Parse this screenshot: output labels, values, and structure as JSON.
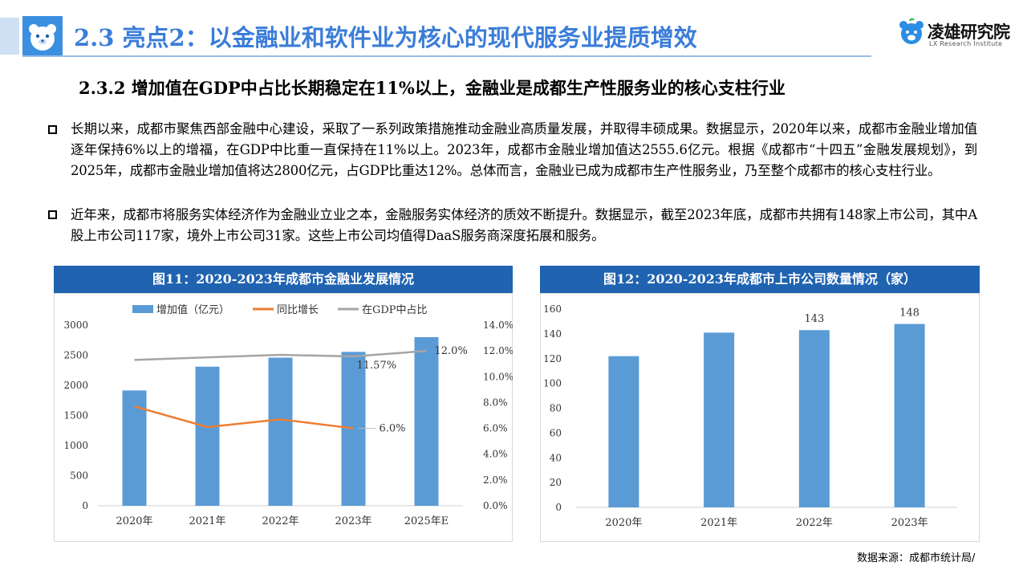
{
  "header": {
    "title": "2.3 亮点2：以金融业和软件业为核心的现代服务业提质增效",
    "brand_name": "凌雄研究院",
    "brand_en": "LX Research Institute"
  },
  "subtitle": "2.3.2 增加值在GDP中占比长期稳定在11%以上，金融业是成都生产性服务业的核心支柱行业",
  "paragraphs": [
    "长期以来，成都市聚焦西部金融中心建设，采取了一系列政策措施推动金融业高质量发展，并取得丰硕成果。数据显示，2020年以来，成都市金融业增加值逐年保持6%以上的增福，在GDP中比重一直保持在11%以上。2023年，成都市金融业增加值达2555.6亿元。根据《成都市“十四五”金融发展规划》，到2025年，成都市金融业增加值将达2800亿元，占GDP比重达12%。总体而言，金融业已成为成都市生产性服务业，乃至整个成都市的核心支柱行业。",
    "近年来，成都市将服务实体经济作为金融业立业之本，金融服务实体经济的质效不断提升。数据显示，截至2023年底，成都市共拥有148家上市公司，其中A股上市公司117家，境外上市公司31家。这些上市公司均值得DaaS服务商深度拓展和服务。"
  ],
  "colors": {
    "title_blue": "#3b7dd8",
    "header_bar": "#1f63b1",
    "bar_blue": "#5b9bd5",
    "line_orange": "#ed7d31",
    "line_gray": "#a5a5a5"
  },
  "source": "数据来源：成都市统计局/",
  "chart_data": [
    {
      "type": "bar",
      "title": "图11：2020-2023年成都市金融业发展情况",
      "categories": [
        "2020年",
        "2021年",
        "2022年",
        "2023年",
        "2025年E"
      ],
      "series": [
        {
          "name": "增加值（亿元）",
          "kind": "bar",
          "axis": "left",
          "values": [
            1915,
            2310,
            2460,
            2555.6,
            2800
          ]
        },
        {
          "name": "同比增长",
          "kind": "line",
          "axis": "right",
          "values": [
            7.7,
            6.1,
            6.7,
            6.0,
            null
          ],
          "end_label": "6.0%"
        },
        {
          "name": "在GDP中占比",
          "kind": "line",
          "axis": "right",
          "values": [
            11.3,
            11.5,
            11.7,
            11.57,
            12.0
          ],
          "point_labels": [
            "",
            "",
            "",
            "11.57%",
            "12.0%"
          ]
        }
      ],
      "ylim_left": [
        0,
        3000
      ],
      "yticks_left": [
        "0",
        "500",
        "1000",
        "1500",
        "2000",
        "2500",
        "3000"
      ],
      "ylim_right": [
        0,
        14
      ],
      "yticks_right": [
        "0.0%",
        "2.0%",
        "4.0%",
        "6.0%",
        "8.0%",
        "10.0%",
        "12.0%",
        "14.0%"
      ],
      "legend": "top",
      "grid": false
    },
    {
      "type": "bar",
      "title": "图12：2020-2023年成都市上市公司数量情况（家）",
      "categories": [
        "2020年",
        "2021年",
        "2022年",
        "2023年"
      ],
      "values": [
        122,
        141,
        143,
        148
      ],
      "data_labels": [
        "",
        "",
        "143",
        "148"
      ],
      "ylim": [
        0,
        160
      ],
      "yticks": [
        "0",
        "20",
        "40",
        "60",
        "80",
        "100",
        "120",
        "140",
        "160"
      ],
      "grid": false
    }
  ]
}
